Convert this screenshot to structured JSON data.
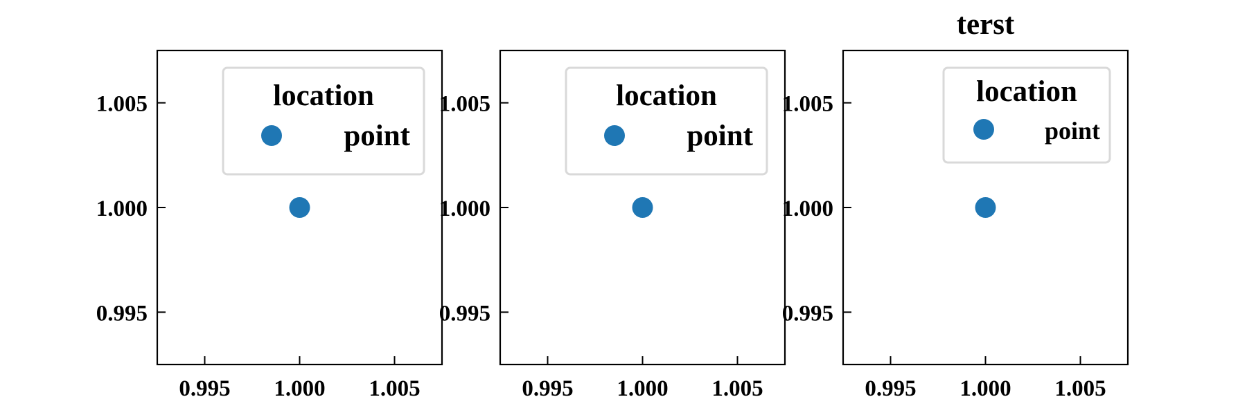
{
  "chart_data": [
    {
      "type": "scatter",
      "title": "",
      "xlabel": "",
      "ylabel": "",
      "xlim": [
        0.9925,
        1.0075
      ],
      "ylim": [
        0.9925,
        1.0075
      ],
      "xticks": [
        "0.995",
        "1.000",
        "1.005"
      ],
      "yticks": [
        "0.995",
        "1.000",
        "1.005"
      ],
      "grid": false,
      "legend": {
        "title": "location",
        "placement": "top-right",
        "entries": [
          "point"
        ]
      },
      "series": [
        {
          "name": "point",
          "color": "#1f77b4",
          "x": [
            1.0
          ],
          "y": [
            1.0
          ]
        }
      ]
    },
    {
      "type": "scatter",
      "title": "",
      "xlabel": "",
      "ylabel": "",
      "xlim": [
        0.9925,
        1.0075
      ],
      "ylim": [
        0.9925,
        1.0075
      ],
      "xticks": [
        "0.995",
        "1.000",
        "1.005"
      ],
      "yticks": [
        "0.995",
        "1.000",
        "1.005"
      ],
      "grid": false,
      "legend": {
        "title": "location",
        "placement": "top-right",
        "entries": [
          "point"
        ]
      },
      "series": [
        {
          "name": "point",
          "color": "#1f77b4",
          "x": [
            1.0
          ],
          "y": [
            1.0
          ]
        }
      ]
    },
    {
      "type": "scatter",
      "title": "terst",
      "xlabel": "",
      "ylabel": "",
      "xlim": [
        0.9925,
        1.0075
      ],
      "ylim": [
        0.9925,
        1.0075
      ],
      "xticks": [
        "0.995",
        "1.000",
        "1.005"
      ],
      "yticks": [
        "0.995",
        "1.000",
        "1.005"
      ],
      "grid": false,
      "legend": {
        "title": "location",
        "placement": "top-right",
        "entries": [
          "point"
        ]
      },
      "series": [
        {
          "name": "point",
          "color": "#1f77b4",
          "x": [
            1.0
          ],
          "y": [
            1.0
          ]
        }
      ]
    }
  ]
}
